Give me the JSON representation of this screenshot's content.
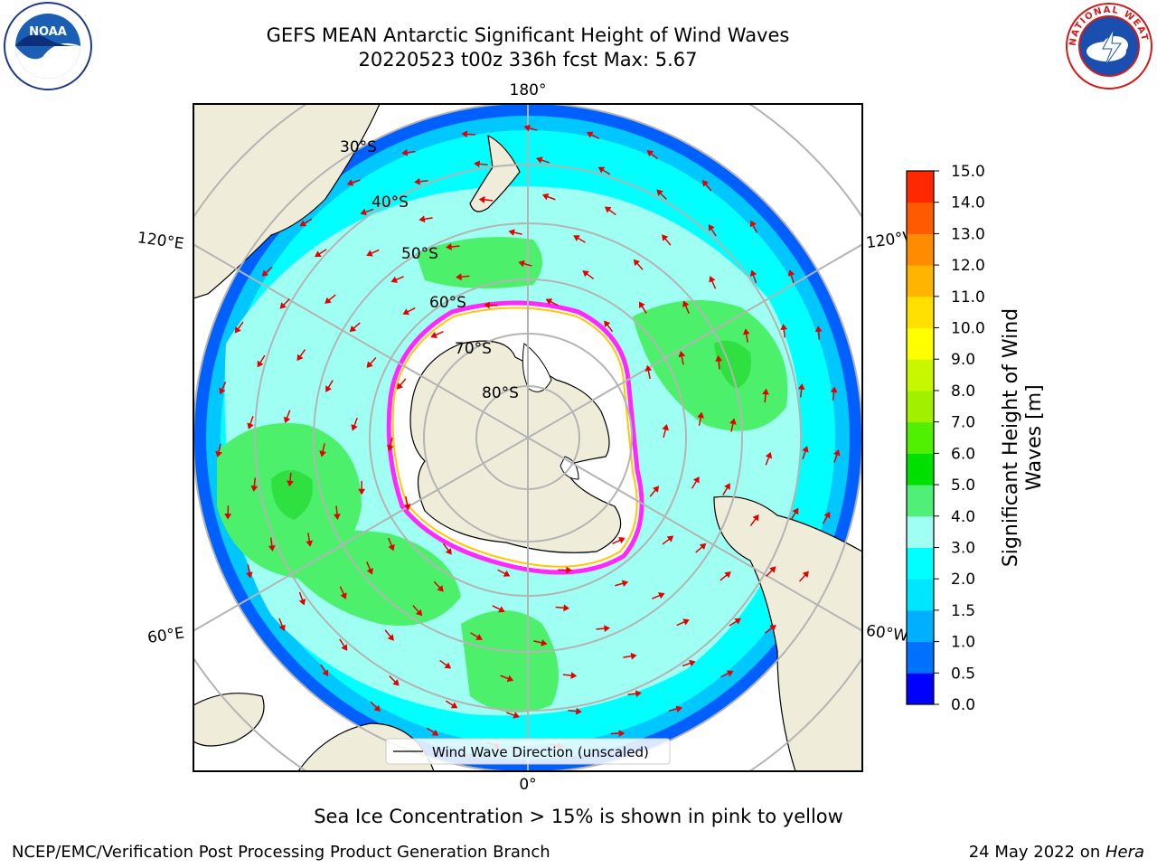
{
  "header": {
    "title_line1": "GEFS MEAN Antarctic Significant Height of Wind Waves",
    "title_line2": "20220523 t00z 336h fcst   Max: 5.67"
  },
  "logos": {
    "left": {
      "name": "noaa-logo",
      "text": "NOAA"
    },
    "right": {
      "name": "nws-logo",
      "ring_text": "NATIONAL WEATHER SERVICE"
    }
  },
  "map": {
    "projection": "south-polar-stereographic",
    "longitude_labels": {
      "top": "180°",
      "bottom": "0°",
      "left_upper": "120°E",
      "left_lower": "60°E",
      "right_upper": "120°W",
      "right_lower": "60°W"
    },
    "latitude_labels": [
      "30°S",
      "40°S",
      "50°S",
      "60°S",
      "70°S",
      "80°S"
    ],
    "legend_label": "Wind Wave Direction (unscaled)",
    "colors": {
      "land": "#efedda",
      "ice": "#ffffff",
      "ocean_low": "#00ffff",
      "ocean_mid": "#9ffff2",
      "ocean_high": "#4cf06a",
      "arrow": "#e40000",
      "grid": "#b4b4b4"
    }
  },
  "colorbar": {
    "label_line1": "Significant Height of Wind",
    "label_line2": "Waves [m]",
    "ticks": [
      "0.0",
      "0.5",
      "1.0",
      "1.5",
      "2.0",
      "3.0",
      "4.0",
      "5.0",
      "6.0",
      "7.0",
      "8.0",
      "9.0",
      "10.0",
      "11.0",
      "12.0",
      "13.0",
      "14.0",
      "15.0"
    ],
    "colors": [
      "#0000ff",
      "#0070ff",
      "#00b0ff",
      "#00e6ff",
      "#00ffff",
      "#9ffff2",
      "#50f078",
      "#00e000",
      "#50f000",
      "#a0f000",
      "#c8f800",
      "#ffff00",
      "#ffe000",
      "#ffb400",
      "#ff8c00",
      "#ff5a00",
      "#ff2800",
      "#ff0000"
    ]
  },
  "caption": "Sea Ice Concentration > 15% is shown in pink to yellow",
  "footer": {
    "left": "NCEP/EMC/Verification Post Processing Product Generation Branch",
    "right_date": "24 May 2022 on ",
    "right_host": "Hera"
  }
}
